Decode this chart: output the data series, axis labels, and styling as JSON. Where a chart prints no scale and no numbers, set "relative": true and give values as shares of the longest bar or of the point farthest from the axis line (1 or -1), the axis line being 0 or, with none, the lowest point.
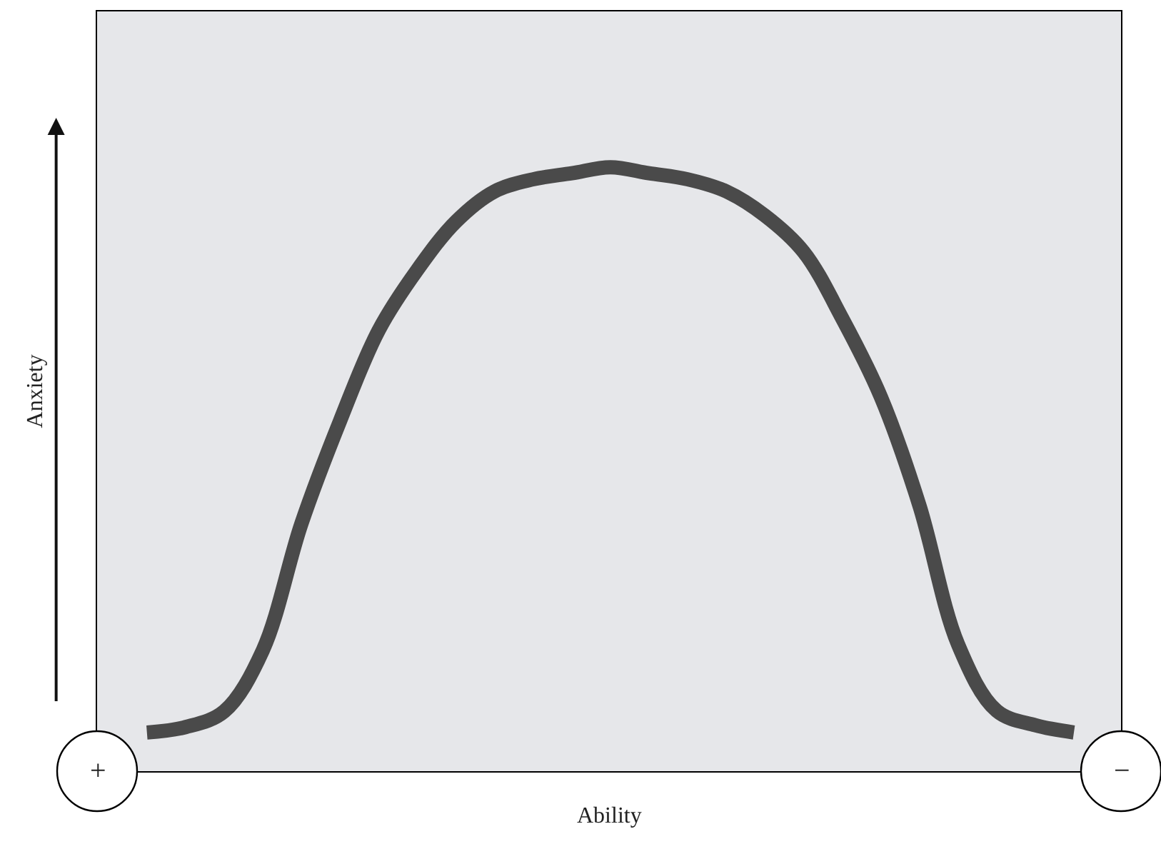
{
  "chart_data": {
    "type": "line",
    "relative": true,
    "xlabel": "Ability",
    "ylabel": "Anxiety",
    "categories": [
      null,
      null,
      null,
      null,
      null,
      null,
      null,
      null,
      null,
      null,
      null,
      null,
      null,
      null,
      null,
      null,
      null,
      null,
      null,
      null,
      null,
      null,
      null,
      null,
      null
    ],
    "series": [
      {
        "color": "#4a4a4a",
        "values": [
          0.064,
          0.073,
          0.099,
          0.2,
          0.41,
          0.58,
          0.73,
          0.83,
          0.91,
          0.96,
          0.98,
          0.99,
          1.0,
          0.99,
          0.98,
          0.96,
          0.92,
          0.86,
          0.75,
          0.62,
          0.44,
          0.21,
          0.1,
          0.076,
          0.064
        ]
      }
    ],
    "annotations": [
      "+",
      "−"
    ],
    "grid": false,
    "marker": "none",
    "line_style": "solid"
  }
}
